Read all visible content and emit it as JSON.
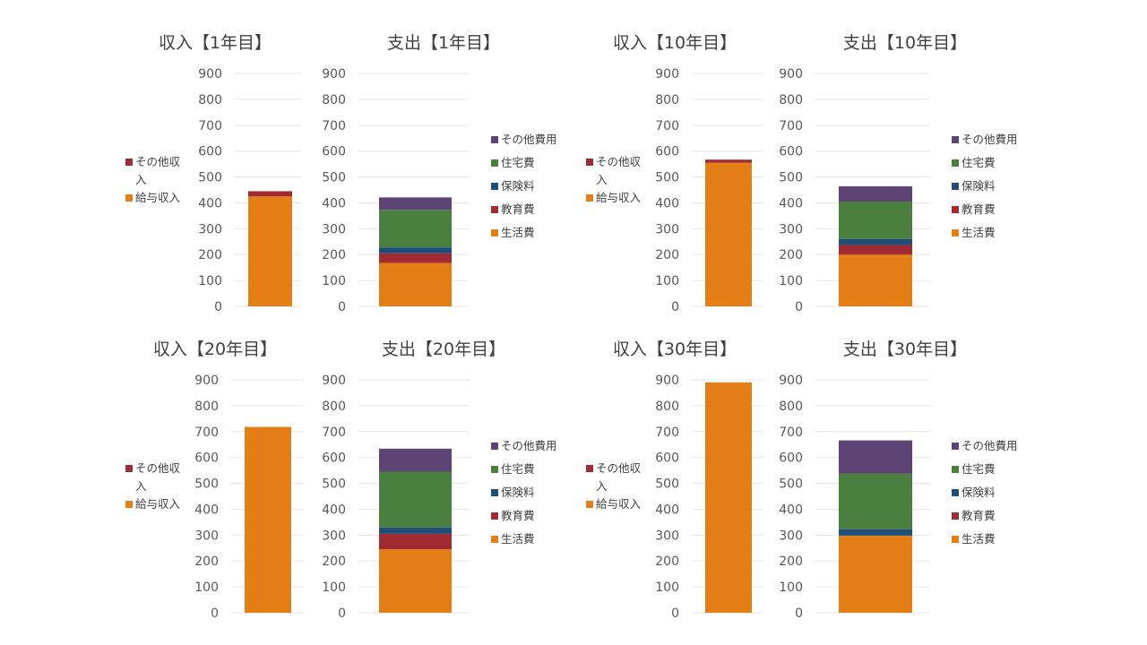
{
  "colors": {
    "salary_income": "#E47E17",
    "other_income": "#A02B32",
    "living": "#E47E17",
    "education": "#A02B32",
    "insurance": "#1F4E79",
    "housing": "#4A7F3F",
    "other_expense": "#5E4474"
  },
  "chart_data": [
    {
      "type": "bar",
      "stacked": true,
      "title": "収入【1年目】",
      "ylim": [
        0,
        900
      ],
      "yticks": [
        "0",
        "100",
        "200",
        "300",
        "400",
        "500",
        "600",
        "700",
        "800",
        "900"
      ],
      "categories": [
        ""
      ],
      "legend_position": "left",
      "grid": true,
      "series": [
        {
          "name": "給与収入",
          "values": [
            425
          ],
          "color_key": "salary_income"
        },
        {
          "name": "その他収入",
          "values": [
            20
          ],
          "color_key": "other_income"
        }
      ]
    },
    {
      "type": "bar",
      "stacked": true,
      "title": "支出【1年目】",
      "ylim": [
        0,
        900
      ],
      "yticks": [
        "0",
        "100",
        "200",
        "300",
        "400",
        "500",
        "600",
        "700",
        "800",
        "900"
      ],
      "categories": [
        ""
      ],
      "legend_position": "right",
      "grid": true,
      "series": [
        {
          "name": "生活費",
          "values": [
            168
          ],
          "color_key": "living"
        },
        {
          "name": "教育費",
          "values": [
            37
          ],
          "color_key": "education"
        },
        {
          "name": "保険料",
          "values": [
            23
          ],
          "color_key": "insurance"
        },
        {
          "name": "住宅費",
          "values": [
            145
          ],
          "color_key": "housing"
        },
        {
          "name": "その他費用",
          "values": [
            48
          ],
          "color_key": "other_expense"
        }
      ]
    },
    {
      "type": "bar",
      "stacked": true,
      "title": "収入【10年目】",
      "ylim": [
        0,
        900
      ],
      "yticks": [
        "0",
        "100",
        "200",
        "300",
        "400",
        "500",
        "600",
        "700",
        "800",
        "900"
      ],
      "categories": [
        ""
      ],
      "legend_position": "left",
      "grid": true,
      "series": [
        {
          "name": "給与収入",
          "values": [
            555
          ],
          "color_key": "salary_income"
        },
        {
          "name": "その他収入",
          "values": [
            12
          ],
          "color_key": "other_income"
        }
      ]
    },
    {
      "type": "bar",
      "stacked": true,
      "title": "支出【10年目】",
      "ylim": [
        0,
        900
      ],
      "yticks": [
        "0",
        "100",
        "200",
        "300",
        "400",
        "500",
        "600",
        "700",
        "800",
        "900"
      ],
      "categories": [
        ""
      ],
      "legend_position": "right",
      "grid": true,
      "series": [
        {
          "name": "生活費",
          "values": [
            200
          ],
          "color_key": "living"
        },
        {
          "name": "教育費",
          "values": [
            37
          ],
          "color_key": "education"
        },
        {
          "name": "保険料",
          "values": [
            23
          ],
          "color_key": "insurance"
        },
        {
          "name": "住宅費",
          "values": [
            145
          ],
          "color_key": "housing"
        },
        {
          "name": "その他費用",
          "values": [
            59
          ],
          "color_key": "other_expense"
        }
      ]
    },
    {
      "type": "bar",
      "stacked": true,
      "title": "収入【20年目】",
      "ylim": [
        0,
        900
      ],
      "yticks": [
        "0",
        "100",
        "200",
        "300",
        "400",
        "500",
        "600",
        "700",
        "800",
        "900"
      ],
      "categories": [
        ""
      ],
      "legend_position": "left",
      "grid": true,
      "series": [
        {
          "name": "給与収入",
          "values": [
            718
          ],
          "color_key": "salary_income"
        },
        {
          "name": "その他収入",
          "values": [
            0
          ],
          "color_key": "other_income"
        }
      ]
    },
    {
      "type": "bar",
      "stacked": true,
      "title": "支出【20年目】",
      "ylim": [
        0,
        900
      ],
      "yticks": [
        "0",
        "100",
        "200",
        "300",
        "400",
        "500",
        "600",
        "700",
        "800",
        "900"
      ],
      "categories": [
        ""
      ],
      "legend_position": "right",
      "grid": true,
      "series": [
        {
          "name": "生活費",
          "values": [
            245
          ],
          "color_key": "living"
        },
        {
          "name": "教育費",
          "values": [
            60
          ],
          "color_key": "education"
        },
        {
          "name": "保険料",
          "values": [
            25
          ],
          "color_key": "insurance"
        },
        {
          "name": "住宅費",
          "values": [
            215
          ],
          "color_key": "housing"
        },
        {
          "name": "その他費用",
          "values": [
            89
          ],
          "color_key": "other_expense"
        }
      ]
    },
    {
      "type": "bar",
      "stacked": true,
      "title": "収入【30年目】",
      "ylim": [
        0,
        900
      ],
      "yticks": [
        "0",
        "100",
        "200",
        "300",
        "400",
        "500",
        "600",
        "700",
        "800",
        "900"
      ],
      "categories": [
        ""
      ],
      "legend_position": "left",
      "grid": true,
      "series": [
        {
          "name": "給与収入",
          "values": [
            890
          ],
          "color_key": "salary_income"
        },
        {
          "name": "その他収入",
          "values": [
            0
          ],
          "color_key": "other_income"
        }
      ]
    },
    {
      "type": "bar",
      "stacked": true,
      "title": "支出【30年目】",
      "ylim": [
        0,
        900
      ],
      "yticks": [
        "0",
        "100",
        "200",
        "300",
        "400",
        "500",
        "600",
        "700",
        "800",
        "900"
      ],
      "categories": [
        ""
      ],
      "legend_position": "right",
      "grid": true,
      "series": [
        {
          "name": "生活費",
          "values": [
            298
          ],
          "color_key": "living"
        },
        {
          "name": "教育費",
          "values": [
            0
          ],
          "color_key": "education"
        },
        {
          "name": "保険料",
          "values": [
            25
          ],
          "color_key": "insurance"
        },
        {
          "name": "住宅費",
          "values": [
            215
          ],
          "color_key": "housing"
        },
        {
          "name": "その他費用",
          "values": [
            128
          ],
          "color_key": "other_expense"
        }
      ]
    }
  ]
}
